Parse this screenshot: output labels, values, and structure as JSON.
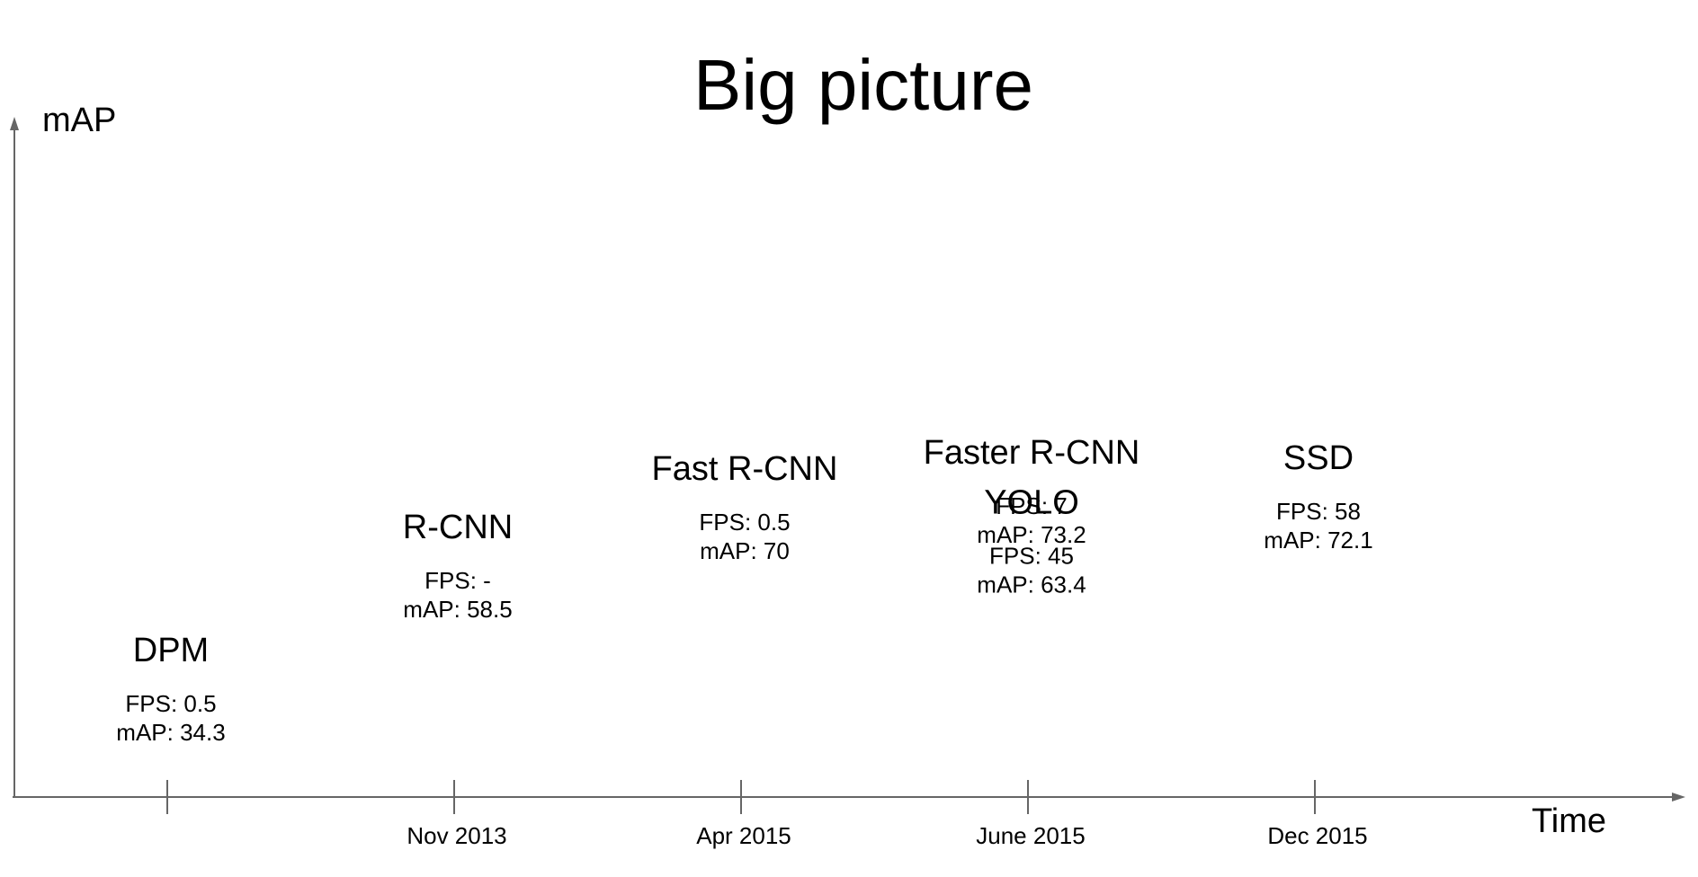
{
  "chart_data": {
    "type": "scatter",
    "title": "Big picture",
    "xlabel": "Time",
    "ylabel": "mAP",
    "x_ticks": [
      "",
      "Nov 2013",
      "Apr 2015",
      "June 2015",
      "Dec 2015"
    ],
    "points": [
      {
        "name": "DPM",
        "x_index": 0,
        "fps_label": "FPS: 0.5",
        "map_label": "mAP: 34.3",
        "fps": 0.5,
        "map": 34.3
      },
      {
        "name": "R-CNN",
        "x_index": 1,
        "fps_label": "FPS: -",
        "map_label": "mAP: 58.5",
        "fps": null,
        "map": 58.5
      },
      {
        "name": "Fast R-CNN",
        "x_index": 2,
        "fps_label": "FPS: 0.5",
        "map_label": "mAP: 70",
        "fps": 0.5,
        "map": 70
      },
      {
        "name": "Faster R-CNN",
        "x_index": 3,
        "fps_label": "FPS: 7",
        "map_label": "mAP: 73.2",
        "fps": 7,
        "map": 73.2
      },
      {
        "name": "YOLO",
        "x_index": 3,
        "fps_label": "FPS: 45",
        "map_label": "mAP: 63.4",
        "fps": 45,
        "map": 63.4
      },
      {
        "name": "SSD",
        "x_index": 4,
        "fps_label": "FPS: 58",
        "map_label": "mAP: 72.1",
        "fps": 58,
        "map": 72.1
      }
    ],
    "grid": false,
    "legend": "none"
  },
  "colors": {
    "axis": "#666666",
    "text": "#000000"
  }
}
